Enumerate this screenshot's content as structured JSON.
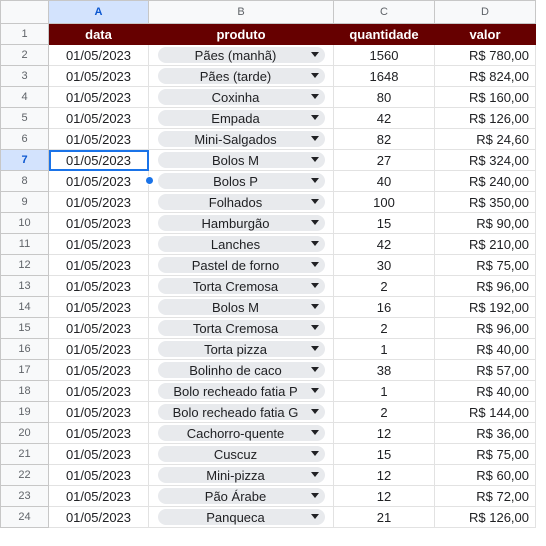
{
  "columns": [
    "A",
    "B",
    "C",
    "D"
  ],
  "headers": [
    "data",
    "produto",
    "quantidade",
    "valor"
  ],
  "rows": [
    {
      "n": "2",
      "data": "01/05/2023",
      "produto": "Pães (manhã)",
      "quantidade": "1560",
      "valor": "R$ 780,00"
    },
    {
      "n": "3",
      "data": "01/05/2023",
      "produto": "Pães (tarde)",
      "quantidade": "1648",
      "valor": "R$ 824,00"
    },
    {
      "n": "4",
      "data": "01/05/2023",
      "produto": "Coxinha",
      "quantidade": "80",
      "valor": "R$ 160,00"
    },
    {
      "n": "5",
      "data": "01/05/2023",
      "produto": "Empada",
      "quantidade": "42",
      "valor": "R$ 126,00"
    },
    {
      "n": "6",
      "data": "01/05/2023",
      "produto": "Mini-Salgados",
      "quantidade": "82",
      "valor": "R$ 24,60"
    },
    {
      "n": "7",
      "data": "01/05/2023",
      "produto": "Bolos M",
      "quantidade": "27",
      "valor": "R$ 324,00"
    },
    {
      "n": "8",
      "data": "01/05/2023",
      "produto": "Bolos P",
      "quantidade": "40",
      "valor": "R$ 240,00"
    },
    {
      "n": "9",
      "data": "01/05/2023",
      "produto": "Folhados",
      "quantidade": "100",
      "valor": "R$ 350,00"
    },
    {
      "n": "10",
      "data": "01/05/2023",
      "produto": "Hamburgão",
      "quantidade": "15",
      "valor": "R$ 90,00"
    },
    {
      "n": "11",
      "data": "01/05/2023",
      "produto": "Lanches",
      "quantidade": "42",
      "valor": "R$ 210,00"
    },
    {
      "n": "12",
      "data": "01/05/2023",
      "produto": "Pastel de forno",
      "quantidade": "30",
      "valor": "R$ 75,00"
    },
    {
      "n": "13",
      "data": "01/05/2023",
      "produto": "Torta Cremosa",
      "quantidade": "2",
      "valor": "R$ 96,00"
    },
    {
      "n": "14",
      "data": "01/05/2023",
      "produto": "Bolos M",
      "quantidade": "16",
      "valor": "R$ 192,00"
    },
    {
      "n": "15",
      "data": "01/05/2023",
      "produto": "Torta Cremosa",
      "quantidade": "2",
      "valor": "R$ 96,00"
    },
    {
      "n": "16",
      "data": "01/05/2023",
      "produto": "Torta pizza",
      "quantidade": "1",
      "valor": "R$ 40,00"
    },
    {
      "n": "17",
      "data": "01/05/2023",
      "produto": "Bolinho de caco",
      "quantidade": "38",
      "valor": "R$ 57,00"
    },
    {
      "n": "18",
      "data": "01/05/2023",
      "produto": "Bolo recheado fatia P",
      "quantidade": "1",
      "valor": "R$ 40,00"
    },
    {
      "n": "19",
      "data": "01/05/2023",
      "produto": "Bolo recheado fatia G",
      "quantidade": "2",
      "valor": "R$ 144,00"
    },
    {
      "n": "20",
      "data": "01/05/2023",
      "produto": "Cachorro-quente",
      "quantidade": "12",
      "valor": "R$ 36,00"
    },
    {
      "n": "21",
      "data": "01/05/2023",
      "produto": "Cuscuz",
      "quantidade": "15",
      "valor": "R$ 75,00"
    },
    {
      "n": "22",
      "data": "01/05/2023",
      "produto": "Mini-pizza",
      "quantidade": "12",
      "valor": "R$ 60,00"
    },
    {
      "n": "23",
      "data": "01/05/2023",
      "produto": "Pão Árabe",
      "quantidade": "12",
      "valor": "R$ 72,00"
    },
    {
      "n": "24",
      "data": "01/05/2023",
      "produto": "Panqueca",
      "quantidade": "21",
      "valor": "R$ 126,00"
    }
  ],
  "selected_row": "7",
  "selected_column": "A",
  "colors": {
    "header_bg": "#660000",
    "selection": "#1a73e8",
    "chip_bg": "#e8eaed"
  },
  "icons": {
    "dropdown": "dropdown-arrow-icon"
  }
}
